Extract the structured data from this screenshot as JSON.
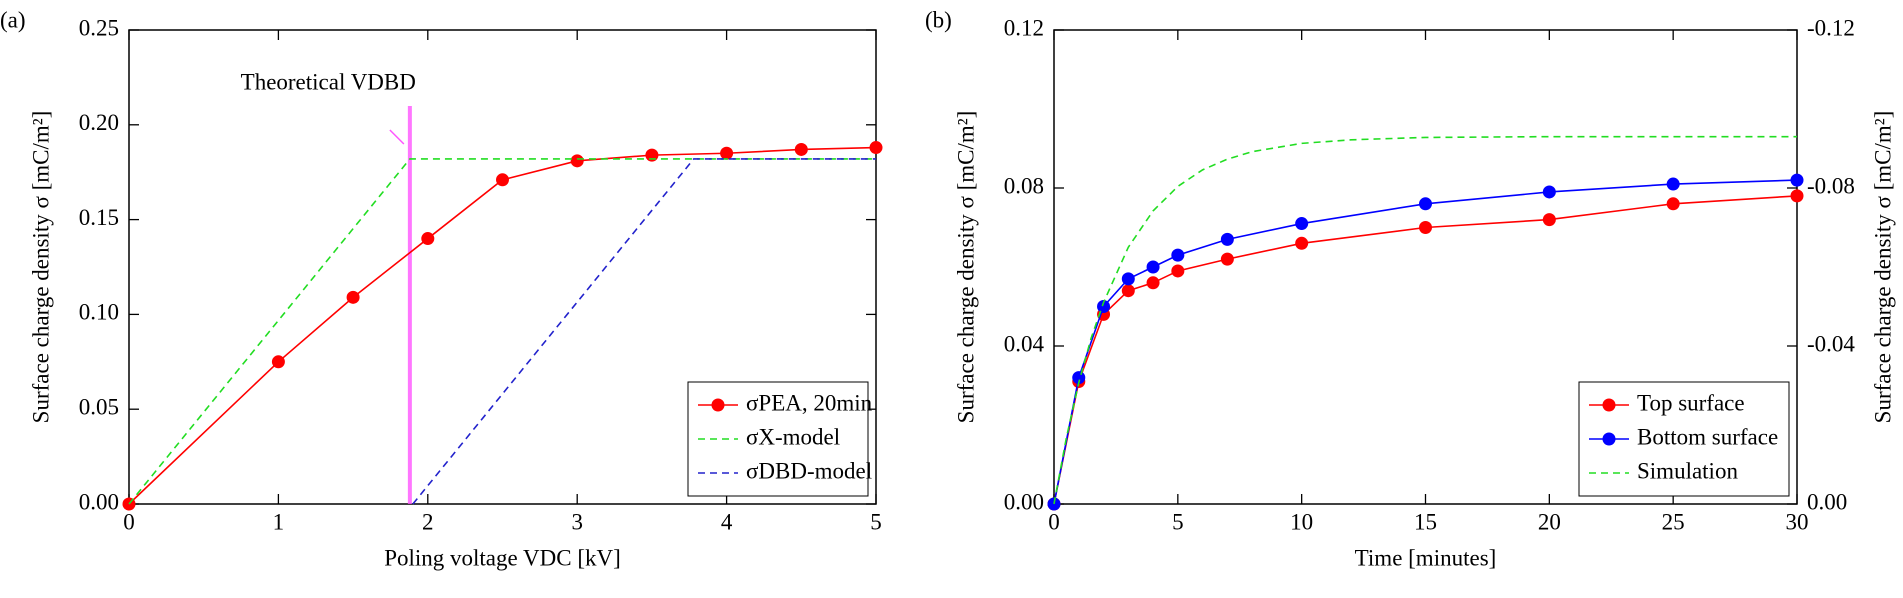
{
  "chart_data": [
    {
      "type": "line",
      "panel_label": "(a)",
      "xlabel": "Poling voltage VDC [kV]",
      "ylabel": "Surface charge density σ [mC/m²]",
      "xlim": [
        0,
        5
      ],
      "ylim": [
        0,
        0.25
      ],
      "xticks": [
        0,
        1,
        2,
        3,
        4,
        5
      ],
      "yticks": [
        {
          "value": 0,
          "label": "0.00"
        },
        0.05,
        {
          "value": 0.1,
          "label": "0.10"
        },
        0.15,
        {
          "value": 0.2,
          "label": "0.20"
        },
        0.25
      ],
      "legend": "lower right",
      "grid": false,
      "annotations": [
        {
          "text": "Theoretical VDBD",
          "x": 1.88,
          "color": "#ff55ff"
        }
      ],
      "series": [
        {
          "name": "σPEA, 20min",
          "color": "#ff0000",
          "marker": "circle",
          "linestyle": "solid",
          "x": [
            0,
            1,
            1.5,
            2,
            2.5,
            3,
            3.5,
            4,
            4.5,
            5
          ],
          "values": [
            0,
            0.075,
            0.109,
            0.14,
            0.171,
            0.181,
            0.184,
            0.185,
            0.187,
            0.188
          ]
        },
        {
          "name": "σX-model",
          "color": "#22dd22",
          "marker": "none",
          "linestyle": "dashed",
          "x": [
            0,
            1.88,
            5
          ],
          "values": [
            0,
            0.182,
            0.182
          ]
        },
        {
          "name": "σDBD-model",
          "color": "#2222cc",
          "marker": "none",
          "linestyle": "dashed",
          "x": [
            1.9,
            3.78,
            5
          ],
          "values": [
            0,
            0.182,
            0.182
          ]
        }
      ]
    },
    {
      "type": "line",
      "panel_label": "(b)",
      "xlabel": "Time [minutes]",
      "ylabel": "Surface charge density σ [mC/m²]",
      "ylabel_color": "#ff0000",
      "y2label": "Surface charge density σ [mC/m²]",
      "y2label_color": "#0000ff",
      "xlim": [
        0,
        30
      ],
      "ylim": [
        0,
        0.12
      ],
      "y2lim": [
        0,
        -0.12
      ],
      "xticks": [
        0,
        5,
        10,
        15,
        20,
        25,
        30
      ],
      "yticks": [
        {
          "value": 0,
          "label": "0.00"
        },
        0.04,
        0.08,
        0.12
      ],
      "y2ticks": [
        {
          "value": 0,
          "label": "0.00"
        },
        -0.04,
        -0.08,
        -0.12
      ],
      "legend": "lower right",
      "grid": false,
      "series": [
        {
          "name": "Top surface",
          "color": "#ff0000",
          "marker": "circle",
          "linestyle": "solid",
          "x": [
            0,
            1,
            2,
            3,
            4,
            5,
            7,
            10,
            15,
            20,
            25,
            30
          ],
          "values": [
            0,
            0.031,
            0.048,
            0.054,
            0.056,
            0.059,
            0.062,
            0.066,
            0.07,
            0.072,
            0.076,
            0.078
          ]
        },
        {
          "name": "Bottom surface",
          "color": "#0000ff",
          "marker": "circle",
          "linestyle": "solid",
          "axis": "y2",
          "x": [
            0,
            1,
            2,
            3,
            4,
            5,
            7,
            10,
            15,
            20,
            25,
            30
          ],
          "values": [
            0,
            -0.032,
            -0.05,
            -0.057,
            -0.06,
            -0.063,
            -0.067,
            -0.071,
            -0.076,
            -0.079,
            -0.081,
            -0.082
          ]
        },
        {
          "name": "Simulation",
          "color": "#22dd22",
          "marker": "none",
          "linestyle": "dashed",
          "x": [
            0,
            0.5,
            1,
            1.5,
            2,
            3,
            4,
            5,
            6,
            7,
            8,
            10,
            12,
            15,
            20,
            25,
            30
          ],
          "values": [
            0,
            0.0168,
            0.0307,
            0.042,
            0.051,
            0.065,
            0.0742,
            0.0804,
            0.0846,
            0.0873,
            0.0892,
            0.0913,
            0.0922,
            0.0928,
            0.093,
            0.093,
            0.093
          ]
        }
      ]
    }
  ]
}
